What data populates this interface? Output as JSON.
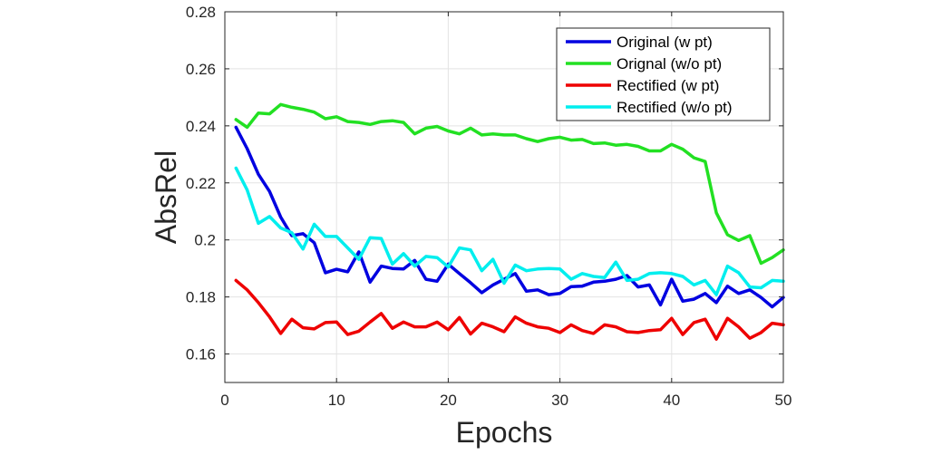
{
  "chart_data": {
    "type": "line",
    "title": "",
    "xlabel": "Epochs",
    "ylabel": "AbsRel",
    "xlim": [
      0,
      50
    ],
    "ylim": [
      0.15,
      0.28
    ],
    "xticks": [
      0,
      10,
      20,
      30,
      40,
      50
    ],
    "xtick_labels": [
      "0",
      "10",
      "20",
      "30",
      "40",
      "50"
    ],
    "yticks": [
      0.16,
      0.18,
      0.2,
      0.22,
      0.24,
      0.26,
      0.28
    ],
    "ytick_labels": [
      "0.16",
      "0.18",
      "0.2",
      "0.22",
      "0.24",
      "0.26",
      "0.28"
    ],
    "grid": true,
    "legend_position": "top-right",
    "x": [
      1,
      2,
      3,
      4,
      5,
      6,
      7,
      8,
      9,
      10,
      11,
      12,
      13,
      14,
      15,
      16,
      17,
      18,
      19,
      20,
      21,
      22,
      23,
      24,
      25,
      26,
      27,
      28,
      29,
      30,
      31,
      32,
      33,
      34,
      35,
      36,
      37,
      38,
      39,
      40,
      41,
      42,
      43,
      44,
      45,
      46,
      47,
      48,
      49,
      50
    ],
    "series": [
      {
        "name": "Original (w pt)",
        "color": "#0000e0",
        "values": [
          0.2395,
          0.232,
          0.223,
          0.217,
          0.208,
          0.2015,
          0.2022,
          0.199,
          0.1885,
          0.1897,
          0.1888,
          0.1958,
          0.1852,
          0.1908,
          0.19,
          0.1898,
          0.1928,
          0.1862,
          0.1855,
          0.1915,
          0.1882,
          0.185,
          0.1815,
          0.1842,
          0.1862,
          0.1882,
          0.182,
          0.1825,
          0.1808,
          0.1812,
          0.1836,
          0.1838,
          0.1852,
          0.1855,
          0.1862,
          0.1875,
          0.1835,
          0.1842,
          0.1772,
          0.1862,
          0.1785,
          0.1792,
          0.1812,
          0.178,
          0.1838,
          0.1812,
          0.1825,
          0.1798,
          0.1765,
          0.1798
        ]
      },
      {
        "name": "Orignal (w/o pt)",
        "color": "#22e022",
        "values": [
          0.2422,
          0.2395,
          0.2445,
          0.2442,
          0.2475,
          0.2465,
          0.2458,
          0.2448,
          0.2425,
          0.2432,
          0.2415,
          0.2412,
          0.2405,
          0.2415,
          0.2418,
          0.2412,
          0.2372,
          0.2392,
          0.2398,
          0.2382,
          0.2372,
          0.2392,
          0.2368,
          0.2372,
          0.2368,
          0.2368,
          0.2355,
          0.2345,
          0.2355,
          0.236,
          0.235,
          0.2352,
          0.2338,
          0.234,
          0.2332,
          0.2335,
          0.2328,
          0.2312,
          0.2312,
          0.2335,
          0.2318,
          0.2288,
          0.2275,
          0.2095,
          0.2018,
          0.1998,
          0.2015,
          0.1918,
          0.1938,
          0.1965
        ]
      },
      {
        "name": "Rectified (w pt)",
        "color": "#ee0000",
        "values": [
          0.1858,
          0.1825,
          0.178,
          0.173,
          0.1672,
          0.1722,
          0.1692,
          0.1688,
          0.171,
          0.1712,
          0.1668,
          0.168,
          0.1712,
          0.1742,
          0.169,
          0.1712,
          0.1695,
          0.1695,
          0.1712,
          0.1685,
          0.1728,
          0.167,
          0.1708,
          0.1695,
          0.1678,
          0.173,
          0.1708,
          0.1695,
          0.169,
          0.1675,
          0.1702,
          0.1682,
          0.1672,
          0.1702,
          0.1695,
          0.1678,
          0.1675,
          0.1682,
          0.1685,
          0.1725,
          0.1668,
          0.171,
          0.1722,
          0.1652,
          0.1725,
          0.1695,
          0.1655,
          0.1675,
          0.1708,
          0.1702
        ]
      },
      {
        "name": "Rectified (w/o pt)",
        "color": "#00eeee",
        "values": [
          0.2252,
          0.2175,
          0.2058,
          0.2082,
          0.2042,
          0.2025,
          0.1968,
          0.2055,
          0.2012,
          0.2012,
          0.1972,
          0.1932,
          0.2008,
          0.2005,
          0.1915,
          0.1952,
          0.1908,
          0.1942,
          0.1938,
          0.1905,
          0.1972,
          0.1965,
          0.1892,
          0.1932,
          0.1848,
          0.1912,
          0.1892,
          0.1898,
          0.19,
          0.1898,
          0.1862,
          0.1882,
          0.1872,
          0.1868,
          0.1922,
          0.1858,
          0.1862,
          0.1882,
          0.1885,
          0.1882,
          0.1872,
          0.1842,
          0.1858,
          0.1808,
          0.1908,
          0.1885,
          0.1835,
          0.1832,
          0.1858,
          0.1855
        ]
      }
    ]
  }
}
